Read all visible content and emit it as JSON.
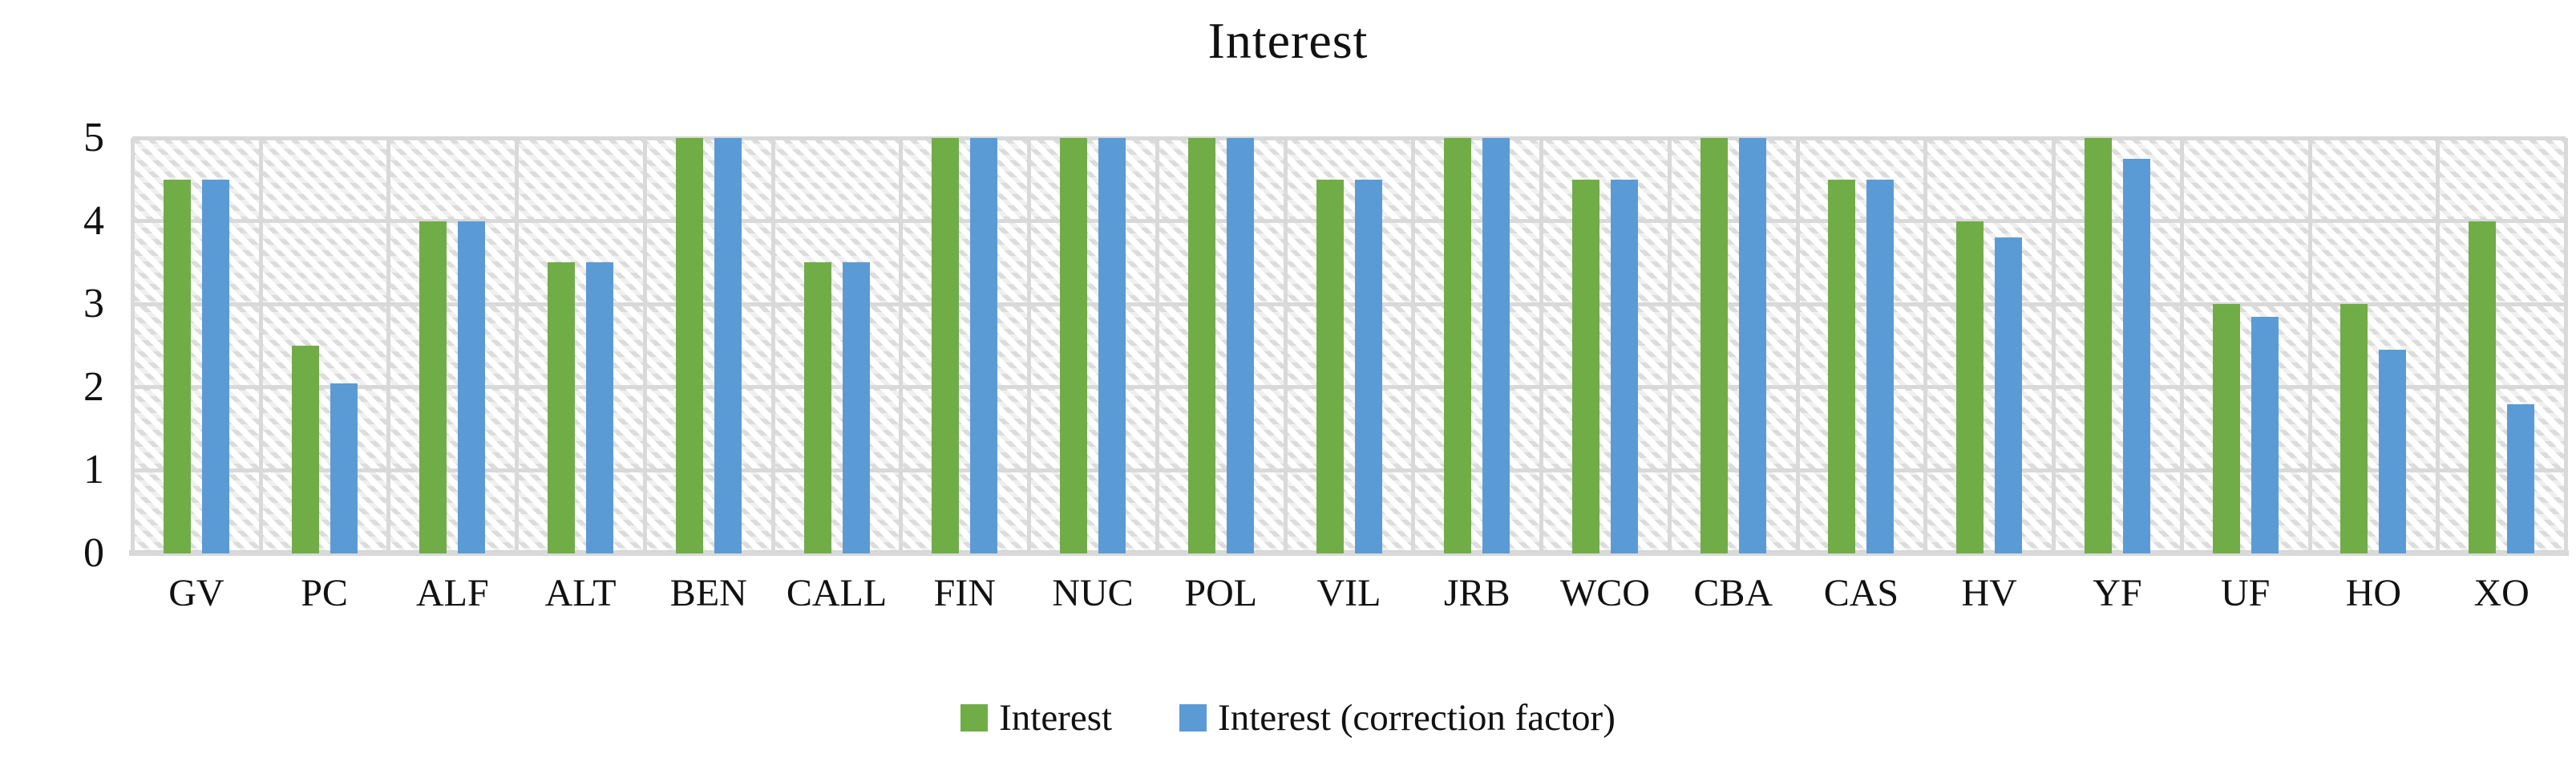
{
  "title": "Interest",
  "colors": {
    "interest_series": "#70AD47",
    "correction_series": "#5B9BD5",
    "gridline": "#D9D9D9",
    "axis_text": "#111111"
  },
  "y_axis": {
    "ticks": [
      "0",
      "1",
      "2",
      "3",
      "4",
      "5"
    ],
    "min": 0,
    "max": 5
  },
  "chart_data": {
    "type": "bar",
    "title": "Interest",
    "xlabel": "",
    "ylabel": "",
    "ylim": [
      0,
      5
    ],
    "grid": true,
    "plot_area_fill": "diagonal-hatch",
    "legend_position": "bottom",
    "categories": [
      "GV",
      "PC",
      "ALF",
      "ALT",
      "BEN",
      "CALL",
      "FIN",
      "NUC",
      "POL",
      "VIL",
      "JRB",
      "WCO",
      "CBA",
      "CAS",
      "HV",
      "YF",
      "UF",
      "HO",
      "XO"
    ],
    "series": [
      {
        "name": "Interest",
        "color": "#70AD47",
        "values": [
          4.5,
          2.5,
          4,
          3.5,
          5,
          3.5,
          5,
          5,
          5,
          4.5,
          5,
          4.5,
          5,
          4.5,
          4,
          5,
          3,
          3,
          4
        ]
      },
      {
        "name": "Interest (correction factor)",
        "color": "#5B9BD5",
        "values": [
          4.5,
          2.05,
          4,
          3.5,
          5,
          3.5,
          5,
          5,
          5,
          4.5,
          5,
          4.5,
          5,
          4.5,
          3.8,
          4.75,
          2.85,
          2.45,
          1.8
        ]
      }
    ]
  }
}
